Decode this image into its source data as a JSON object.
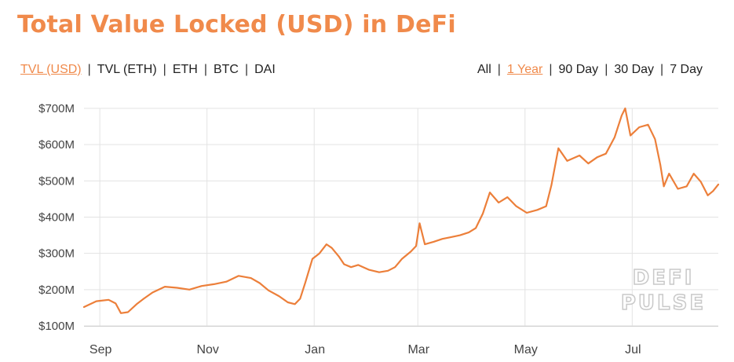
{
  "header": {
    "title": "Total Value Locked (USD) in DeFi"
  },
  "metric_tabs": [
    {
      "label": "TVL (USD)",
      "active": true
    },
    {
      "label": "TVL (ETH)",
      "active": false
    },
    {
      "label": "ETH",
      "active": false
    },
    {
      "label": "BTC",
      "active": false
    },
    {
      "label": "DAI",
      "active": false
    }
  ],
  "range_tabs": [
    {
      "label": "All",
      "active": false
    },
    {
      "label": "1 Year",
      "active": true
    },
    {
      "label": "90 Day",
      "active": false
    },
    {
      "label": "30 Day",
      "active": false
    },
    {
      "label": "7 Day",
      "active": false
    }
  ],
  "watermark": [
    "DEFI",
    "PULSE"
  ],
  "colors": {
    "accent": "#f08a4b",
    "line": "#ec7f3a",
    "grid": "#e3e3e3",
    "text": "#444444"
  },
  "chart_data": {
    "type": "line",
    "title": "Total Value Locked (USD) in DeFi",
    "xlabel": "",
    "ylabel": "",
    "x_start": "2018-08-23",
    "x_end": "2019-08-19",
    "x_ticks": [
      {
        "label": "Sep",
        "date": "2018-09-01"
      },
      {
        "label": "Nov",
        "date": "2018-11-01"
      },
      {
        "label": "Jan",
        "date": "2019-01-01"
      },
      {
        "label": "Mar",
        "date": "2019-03-01"
      },
      {
        "label": "May",
        "date": "2019-05-01"
      },
      {
        "label": "Jul",
        "date": "2019-07-01"
      }
    ],
    "y_ticks": [
      {
        "label": "$100M",
        "value": 100
      },
      {
        "label": "$200M",
        "value": 200
      },
      {
        "label": "$300M",
        "value": 300
      },
      {
        "label": "$400M",
        "value": 400
      },
      {
        "label": "$500M",
        "value": 500
      },
      {
        "label": "$600M",
        "value": 600
      },
      {
        "label": "$700M",
        "value": 700
      }
    ],
    "ylim": [
      100,
      700
    ],
    "y_unit": "USD millions",
    "grid": true,
    "series": [
      {
        "values": [
          {
            "x": "2018-08-23",
            "y": 152
          },
          {
            "x": "2018-08-30",
            "y": 168
          },
          {
            "x": "2018-09-06",
            "y": 172
          },
          {
            "x": "2018-09-10",
            "y": 162
          },
          {
            "x": "2018-09-13",
            "y": 135
          },
          {
            "x": "2018-09-17",
            "y": 138
          },
          {
            "x": "2018-09-22",
            "y": 160
          },
          {
            "x": "2018-09-26",
            "y": 175
          },
          {
            "x": "2018-10-01",
            "y": 192
          },
          {
            "x": "2018-10-08",
            "y": 208
          },
          {
            "x": "2018-10-15",
            "y": 205
          },
          {
            "x": "2018-10-22",
            "y": 200
          },
          {
            "x": "2018-10-29",
            "y": 210
          },
          {
            "x": "2018-11-05",
            "y": 215
          },
          {
            "x": "2018-11-12",
            "y": 222
          },
          {
            "x": "2018-11-19",
            "y": 238
          },
          {
            "x": "2018-11-26",
            "y": 232
          },
          {
            "x": "2018-12-01",
            "y": 218
          },
          {
            "x": "2018-12-06",
            "y": 198
          },
          {
            "x": "2018-12-12",
            "y": 182
          },
          {
            "x": "2018-12-17",
            "y": 165
          },
          {
            "x": "2018-12-21",
            "y": 160
          },
          {
            "x": "2018-12-24",
            "y": 175
          },
          {
            "x": "2018-12-27",
            "y": 220
          },
          {
            "x": "2018-12-31",
            "y": 285
          },
          {
            "x": "2019-01-04",
            "y": 300
          },
          {
            "x": "2019-01-08",
            "y": 325
          },
          {
            "x": "2019-01-11",
            "y": 315
          },
          {
            "x": "2019-01-15",
            "y": 292
          },
          {
            "x": "2019-01-18",
            "y": 270
          },
          {
            "x": "2019-01-22",
            "y": 262
          },
          {
            "x": "2019-01-26",
            "y": 268
          },
          {
            "x": "2019-02-01",
            "y": 255
          },
          {
            "x": "2019-02-07",
            "y": 248
          },
          {
            "x": "2019-02-12",
            "y": 252
          },
          {
            "x": "2019-02-16",
            "y": 262
          },
          {
            "x": "2019-02-20",
            "y": 285
          },
          {
            "x": "2019-02-25",
            "y": 305
          },
          {
            "x": "2019-02-28",
            "y": 320
          },
          {
            "x": "2019-03-02",
            "y": 383
          },
          {
            "x": "2019-03-05",
            "y": 325
          },
          {
            "x": "2019-03-10",
            "y": 332
          },
          {
            "x": "2019-03-15",
            "y": 340
          },
          {
            "x": "2019-03-20",
            "y": 345
          },
          {
            "x": "2019-03-25",
            "y": 350
          },
          {
            "x": "2019-03-30",
            "y": 358
          },
          {
            "x": "2019-04-03",
            "y": 370
          },
          {
            "x": "2019-04-07",
            "y": 410
          },
          {
            "x": "2019-04-11",
            "y": 468
          },
          {
            "x": "2019-04-16",
            "y": 440
          },
          {
            "x": "2019-04-21",
            "y": 455
          },
          {
            "x": "2019-04-26",
            "y": 430
          },
          {
            "x": "2019-05-02",
            "y": 412
          },
          {
            "x": "2019-05-08",
            "y": 420
          },
          {
            "x": "2019-05-13",
            "y": 430
          },
          {
            "x": "2019-05-16",
            "y": 488
          },
          {
            "x": "2019-05-20",
            "y": 590
          },
          {
            "x": "2019-05-25",
            "y": 555
          },
          {
            "x": "2019-06-01",
            "y": 570
          },
          {
            "x": "2019-06-06",
            "y": 548
          },
          {
            "x": "2019-06-11",
            "y": 565
          },
          {
            "x": "2019-06-16",
            "y": 575
          },
          {
            "x": "2019-06-21",
            "y": 620
          },
          {
            "x": "2019-06-25",
            "y": 680
          },
          {
            "x": "2019-06-27",
            "y": 700
          },
          {
            "x": "2019-06-30",
            "y": 625
          },
          {
            "x": "2019-07-05",
            "y": 648
          },
          {
            "x": "2019-07-10",
            "y": 655
          },
          {
            "x": "2019-07-14",
            "y": 615
          },
          {
            "x": "2019-07-17",
            "y": 545
          },
          {
            "x": "2019-07-19",
            "y": 485
          },
          {
            "x": "2019-07-22",
            "y": 520
          },
          {
            "x": "2019-07-27",
            "y": 478
          },
          {
            "x": "2019-08-01",
            "y": 485
          },
          {
            "x": "2019-08-05",
            "y": 520
          },
          {
            "x": "2019-08-09",
            "y": 498
          },
          {
            "x": "2019-08-13",
            "y": 460
          },
          {
            "x": "2019-08-16",
            "y": 472
          },
          {
            "x": "2019-08-19",
            "y": 490
          }
        ]
      }
    ]
  }
}
